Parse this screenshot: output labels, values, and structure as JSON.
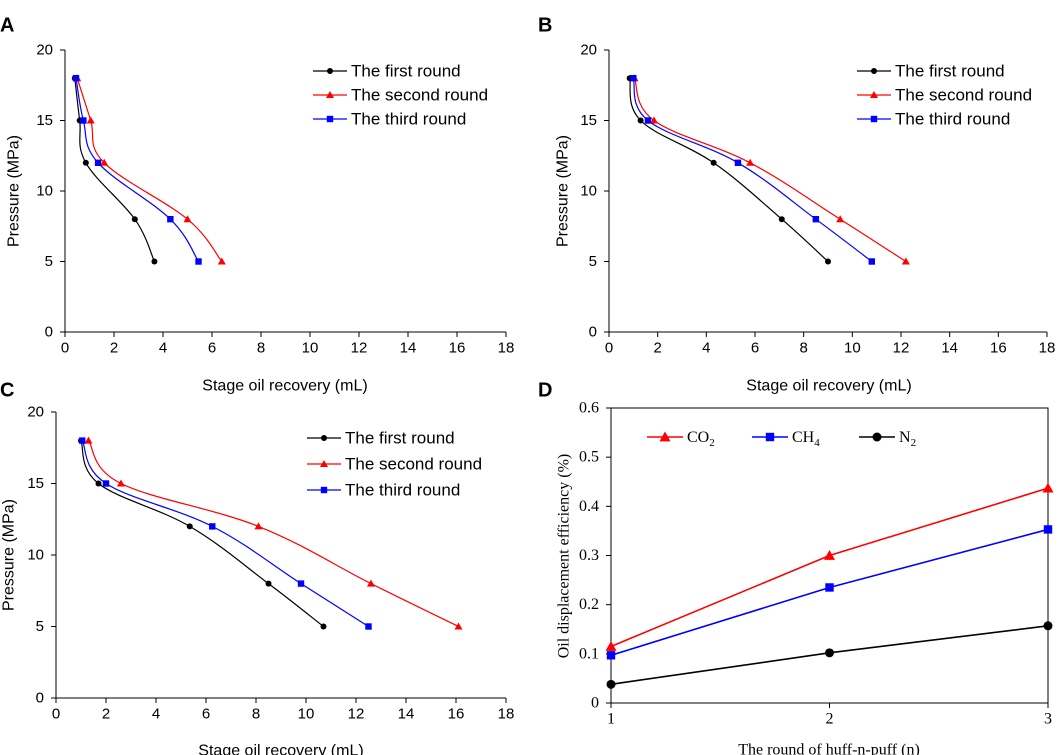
{
  "chart_data": [
    {
      "panel": "A",
      "type": "line",
      "xlabel": "Stage oil recovery (mL)",
      "ylabel": "Pressure (MPa)",
      "xlim": [
        0,
        18
      ],
      "ylim": [
        0,
        20
      ],
      "xticks": [
        "0",
        "2",
        "4",
        "6",
        "8",
        "10",
        "12",
        "14",
        "16",
        "18"
      ],
      "yticks": [
        "0",
        "5",
        "10",
        "15",
        "20"
      ],
      "legend_position": "top-right",
      "series": [
        {
          "name": "The first round",
          "color": "#000000",
          "marker": "circle",
          "x": [
            3.65,
            2.85,
            0.85,
            0.6,
            0.4
          ],
          "y": [
            5,
            8,
            12,
            15,
            18
          ]
        },
        {
          "name": "The second round",
          "color": "#ff0000",
          "marker": "triangle",
          "x": [
            6.4,
            5.0,
            1.6,
            1.05,
            0.5
          ],
          "y": [
            5,
            8,
            12,
            15,
            18
          ]
        },
        {
          "name": "The third round",
          "color": "#0000ff",
          "marker": "square",
          "x": [
            5.45,
            4.3,
            1.35,
            0.75,
            0.45
          ],
          "y": [
            5,
            8,
            12,
            15,
            18
          ]
        }
      ]
    },
    {
      "panel": "B",
      "type": "line",
      "xlabel": "Stage oil recovery (mL)",
      "ylabel": "Pressure (MPa)",
      "xlim": [
        0,
        18
      ],
      "ylim": [
        0,
        20
      ],
      "xticks": [
        "0",
        "2",
        "4",
        "6",
        "8",
        "10",
        "12",
        "14",
        "16",
        "18"
      ],
      "yticks": [
        "0",
        "5",
        "10",
        "15",
        "20"
      ],
      "legend_position": "top-right",
      "series": [
        {
          "name": "The first round",
          "color": "#000000",
          "marker": "circle",
          "x": [
            9.0,
            7.1,
            4.3,
            1.3,
            0.85
          ],
          "y": [
            5,
            8,
            12,
            15,
            18
          ]
        },
        {
          "name": "The second round",
          "color": "#ff0000",
          "marker": "triangle",
          "x": [
            12.2,
            9.5,
            5.8,
            1.85,
            1.05
          ],
          "y": [
            5,
            8,
            12,
            15,
            18
          ]
        },
        {
          "name": "The third round",
          "color": "#0000ff",
          "marker": "square",
          "x": [
            10.8,
            8.5,
            5.3,
            1.6,
            1.0
          ],
          "y": [
            5,
            8,
            12,
            15,
            18
          ]
        }
      ]
    },
    {
      "panel": "C",
      "type": "line",
      "xlabel": "Stage oil recovery (mL)",
      "ylabel": "Pressure (MPa)",
      "xlim": [
        0,
        18
      ],
      "ylim": [
        0,
        20
      ],
      "xticks": [
        "0",
        "2",
        "4",
        "6",
        "8",
        "10",
        "12",
        "14",
        "16",
        "18"
      ],
      "yticks": [
        "0",
        "5",
        "10",
        "15",
        "20"
      ],
      "legend_position": "top-right",
      "series": [
        {
          "name": "The first round",
          "color": "#000000",
          "marker": "circle",
          "x": [
            10.7,
            8.5,
            5.35,
            1.7,
            1.0
          ],
          "y": [
            5,
            8,
            12,
            15,
            18
          ]
        },
        {
          "name": "The second round",
          "color": "#ff0000",
          "marker": "triangle",
          "x": [
            16.1,
            12.6,
            8.1,
            2.6,
            1.3
          ],
          "y": [
            5,
            8,
            12,
            15,
            18
          ]
        },
        {
          "name": "The third round",
          "color": "#0000ff",
          "marker": "square",
          "x": [
            12.5,
            9.8,
            6.25,
            2.0,
            1.05
          ],
          "y": [
            5,
            8,
            12,
            15,
            18
          ]
        }
      ]
    },
    {
      "panel": "D",
      "type": "line",
      "xlabel": "The round of huff-n-puff (n)",
      "ylabel": "Oil displacement efficiency  (%)",
      "xlim": [
        1,
        3
      ],
      "ylim": [
        0,
        0.6
      ],
      "xticks": [
        "1",
        "2",
        "3"
      ],
      "yticks": [
        "0",
        "0.1",
        "0.2",
        "0.3",
        "0.4",
        "0.5",
        "0.6"
      ],
      "legend_position": "top-left",
      "series": [
        {
          "name": "CO",
          "subscript": "2",
          "color": "#ff0000",
          "marker": "triangle",
          "x": [
            1,
            2,
            3
          ],
          "y": [
            0.115,
            0.3,
            0.437
          ]
        },
        {
          "name": "CH",
          "subscript": "4",
          "color": "#0000ff",
          "marker": "square",
          "x": [
            1,
            2,
            3
          ],
          "y": [
            0.097,
            0.235,
            0.353
          ]
        },
        {
          "name": "N",
          "subscript": "2",
          "color": "#000000",
          "marker": "circle",
          "x": [
            1,
            2,
            3
          ],
          "y": [
            0.038,
            0.102,
            0.157
          ]
        }
      ]
    }
  ]
}
